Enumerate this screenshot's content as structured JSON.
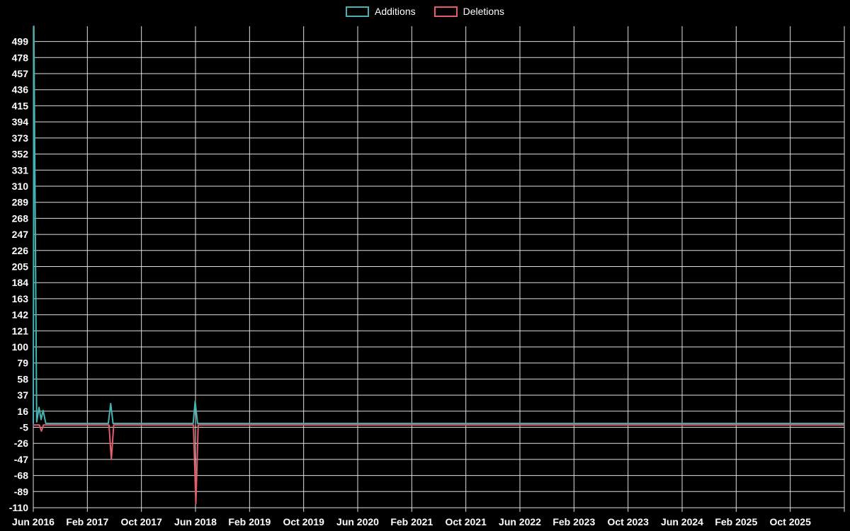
{
  "legend": {
    "items": [
      {
        "label": "Additions",
        "color": "#45b3b3"
      },
      {
        "label": "Deletions",
        "color": "#e35d6a"
      }
    ]
  },
  "chart_data": {
    "type": "line",
    "title": "",
    "xlabel": "",
    "ylabel": "",
    "x_unit": "months_since_jun_2016",
    "xlim": [
      0,
      120
    ],
    "ylim": [
      -115.5,
      519
    ],
    "grid": true,
    "grid_color": "#e0e0e0",
    "background_color": "#000000",
    "legend_position": "top-center",
    "x_ticks": [
      {
        "pos": 0,
        "label": "Jun 2016"
      },
      {
        "pos": 8,
        "label": "Feb 2017"
      },
      {
        "pos": 16,
        "label": "Oct 2017"
      },
      {
        "pos": 24,
        "label": "Jun 2018"
      },
      {
        "pos": 32,
        "label": "Feb 2019"
      },
      {
        "pos": 40,
        "label": "Oct 2019"
      },
      {
        "pos": 48,
        "label": "Jun 2020"
      },
      {
        "pos": 56,
        "label": "Feb 2021"
      },
      {
        "pos": 64,
        "label": "Oct 2021"
      },
      {
        "pos": 72,
        "label": "Jun 2022"
      },
      {
        "pos": 80,
        "label": "Feb 2023"
      },
      {
        "pos": 88,
        "label": "Oct 2023"
      },
      {
        "pos": 96,
        "label": "Jun 2024"
      },
      {
        "pos": 104,
        "label": "Feb 2025"
      },
      {
        "pos": 112,
        "label": "Oct 2025"
      }
    ],
    "y_ticks": [
      499,
      478,
      457,
      436,
      415,
      394,
      373,
      352,
      331,
      310,
      289,
      268,
      247,
      226,
      205,
      184,
      163,
      142,
      121,
      100,
      79,
      58,
      37,
      16,
      -5,
      -26,
      -47,
      -68,
      -89,
      -110
    ],
    "series": [
      {
        "name": "Deletions",
        "color": "#e35d6a",
        "points": [
          [
            0,
            -2
          ],
          [
            0.9,
            -2
          ],
          [
            1.2,
            -10
          ],
          [
            1.5,
            -2
          ],
          [
            11.2,
            -2
          ],
          [
            11.55,
            -47
          ],
          [
            11.9,
            -2
          ],
          [
            23.7,
            -2
          ],
          [
            24.05,
            -105
          ],
          [
            24.4,
            -2
          ],
          [
            120,
            -2
          ]
        ]
      },
      {
        "name": "Additions",
        "color": "#45b3b3",
        "points": [
          [
            0,
            0
          ],
          [
            0.08,
            519
          ],
          [
            0.5,
            2
          ],
          [
            0.85,
            21
          ],
          [
            1.15,
            5
          ],
          [
            1.45,
            17
          ],
          [
            1.85,
            0
          ],
          [
            11.1,
            0
          ],
          [
            11.45,
            26
          ],
          [
            11.8,
            0
          ],
          [
            23.65,
            0
          ],
          [
            23.95,
            29
          ],
          [
            24.3,
            0
          ],
          [
            120,
            0
          ]
        ]
      }
    ]
  }
}
